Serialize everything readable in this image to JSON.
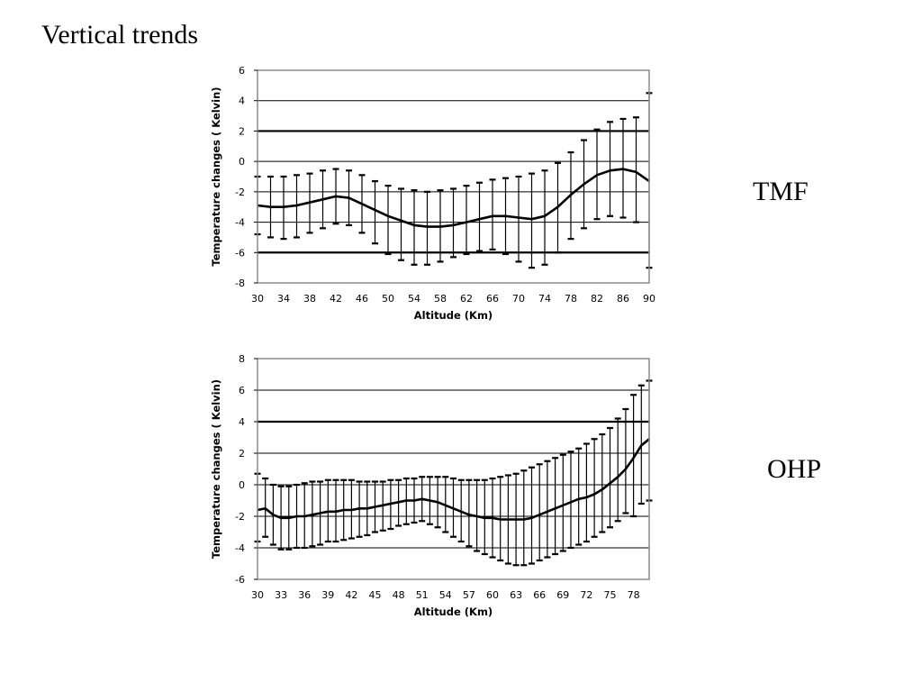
{
  "slide": {
    "title": "Vertical trends",
    "labels": [
      "TMF",
      "OHP"
    ]
  },
  "chart_data": [
    {
      "type": "line",
      "xlabel": "Altitude (Km)",
      "ylabel": "Temperature changes ( Kelvin)",
      "xlim": [
        30,
        90
      ],
      "ylim": [
        -8,
        6
      ],
      "y_ticks": [
        6,
        4,
        2,
        0,
        -2,
        -4,
        -6,
        -8
      ],
      "x_ticks": [
        30,
        34,
        38,
        42,
        46,
        50,
        54,
        58,
        62,
        66,
        70,
        74,
        78,
        82,
        86,
        90
      ],
      "grid": "horizontal",
      "bold_gridlines": [
        2,
        -6
      ],
      "error_bars": true,
      "x": [
        30,
        32,
        34,
        36,
        38,
        40,
        42,
        44,
        46,
        48,
        50,
        52,
        54,
        56,
        58,
        60,
        62,
        64,
        66,
        68,
        70,
        72,
        74,
        76,
        78,
        80,
        82,
        84,
        86,
        88,
        90
      ],
      "y": [
        -2.9,
        -3.0,
        -3.0,
        -2.9,
        -2.7,
        -2.5,
        -2.3,
        -2.4,
        -2.8,
        -3.2,
        -3.6,
        -3.9,
        -4.2,
        -4.3,
        -4.3,
        -4.2,
        -4.0,
        -3.8,
        -3.6,
        -3.6,
        -3.7,
        -3.8,
        -3.6,
        -3.0,
        -2.2,
        -1.5,
        -0.9,
        -0.6,
        -0.5,
        -0.7,
        -1.3
      ],
      "upper": [
        -1.0,
        -1.0,
        -1.0,
        -0.9,
        -0.8,
        -0.6,
        -0.5,
        -0.6,
        -0.9,
        -1.3,
        -1.6,
        -1.8,
        -1.9,
        -2.0,
        -1.9,
        -1.8,
        -1.6,
        -1.4,
        -1.2,
        -1.1,
        -1.0,
        -0.8,
        -0.6,
        -0.1,
        0.6,
        1.4,
        2.1,
        2.6,
        2.8,
        2.9,
        4.5
      ],
      "lower": [
        -4.8,
        -5.0,
        -5.1,
        -5.0,
        -4.7,
        -4.4,
        -4.1,
        -4.2,
        -4.7,
        -5.4,
        -6.1,
        -6.5,
        -6.8,
        -6.8,
        -6.6,
        -6.3,
        -6.1,
        -5.9,
        -5.8,
        -6.1,
        -6.6,
        -7.0,
        -6.8,
        -6.0,
        -5.1,
        -4.4,
        -3.8,
        -3.6,
        -3.7,
        -4.0,
        -7.0
      ]
    },
    {
      "type": "line",
      "xlabel": "Altitude (Km)",
      "ylabel": "Temperature changes ( Kelvin)",
      "xlim": [
        30,
        80
      ],
      "ylim": [
        -6,
        8
      ],
      "y_ticks": [
        8,
        6,
        4,
        2,
        0,
        -2,
        -4,
        -6
      ],
      "x_ticks": [
        30,
        33,
        36,
        39,
        42,
        45,
        48,
        51,
        54,
        57,
        60,
        63,
        66,
        69,
        72,
        75,
        78
      ],
      "grid": "horizontal",
      "bold_gridlines": [
        4
      ],
      "error_bars": true,
      "x": [
        30,
        31,
        32,
        33,
        34,
        35,
        36,
        37,
        38,
        39,
        40,
        41,
        42,
        43,
        44,
        45,
        46,
        47,
        48,
        49,
        50,
        51,
        52,
        53,
        54,
        55,
        56,
        57,
        58,
        59,
        60,
        61,
        62,
        63,
        64,
        65,
        66,
        67,
        68,
        69,
        70,
        71,
        72,
        73,
        74,
        75,
        76,
        77,
        78,
        79,
        80
      ],
      "y": [
        -1.6,
        -1.5,
        -1.9,
        -2.1,
        -2.1,
        -2.0,
        -2.0,
        -1.9,
        -1.8,
        -1.7,
        -1.7,
        -1.6,
        -1.6,
        -1.5,
        -1.5,
        -1.4,
        -1.3,
        -1.2,
        -1.1,
        -1.0,
        -1.0,
        -0.9,
        -1.0,
        -1.1,
        -1.3,
        -1.5,
        -1.7,
        -1.9,
        -2.0,
        -2.1,
        -2.1,
        -2.2,
        -2.2,
        -2.2,
        -2.2,
        -2.1,
        -1.9,
        -1.7,
        -1.5,
        -1.3,
        -1.1,
        -0.9,
        -0.8,
        -0.6,
        -0.3,
        0.1,
        0.5,
        1.0,
        1.7,
        2.5,
        2.9
      ],
      "upper": [
        0.7,
        0.4,
        0.0,
        -0.1,
        -0.1,
        0.0,
        0.1,
        0.2,
        0.2,
        0.3,
        0.3,
        0.3,
        0.3,
        0.2,
        0.2,
        0.2,
        0.2,
        0.3,
        0.3,
        0.4,
        0.4,
        0.5,
        0.5,
        0.5,
        0.5,
        0.4,
        0.3,
        0.3,
        0.3,
        0.3,
        0.4,
        0.5,
        0.6,
        0.7,
        0.9,
        1.1,
        1.3,
        1.5,
        1.7,
        1.9,
        2.1,
        2.3,
        2.6,
        2.9,
        3.2,
        3.6,
        4.2,
        4.8,
        5.7,
        6.3,
        6.6
      ],
      "lower": [
        -3.6,
        -3.3,
        -3.8,
        -4.1,
        -4.1,
        -4.0,
        -4.0,
        -3.9,
        -3.8,
        -3.6,
        -3.6,
        -3.5,
        -3.4,
        -3.3,
        -3.2,
        -3.0,
        -2.9,
        -2.8,
        -2.6,
        -2.5,
        -2.4,
        -2.3,
        -2.5,
        -2.7,
        -3.0,
        -3.3,
        -3.6,
        -3.9,
        -4.2,
        -4.4,
        -4.6,
        -4.8,
        -5.0,
        -5.1,
        -5.1,
        -5.0,
        -4.8,
        -4.6,
        -4.4,
        -4.2,
        -4.0,
        -3.8,
        -3.6,
        -3.3,
        -3.0,
        -2.7,
        -2.3,
        -1.8,
        -2.0,
        -1.2,
        -1.0
      ]
    }
  ]
}
